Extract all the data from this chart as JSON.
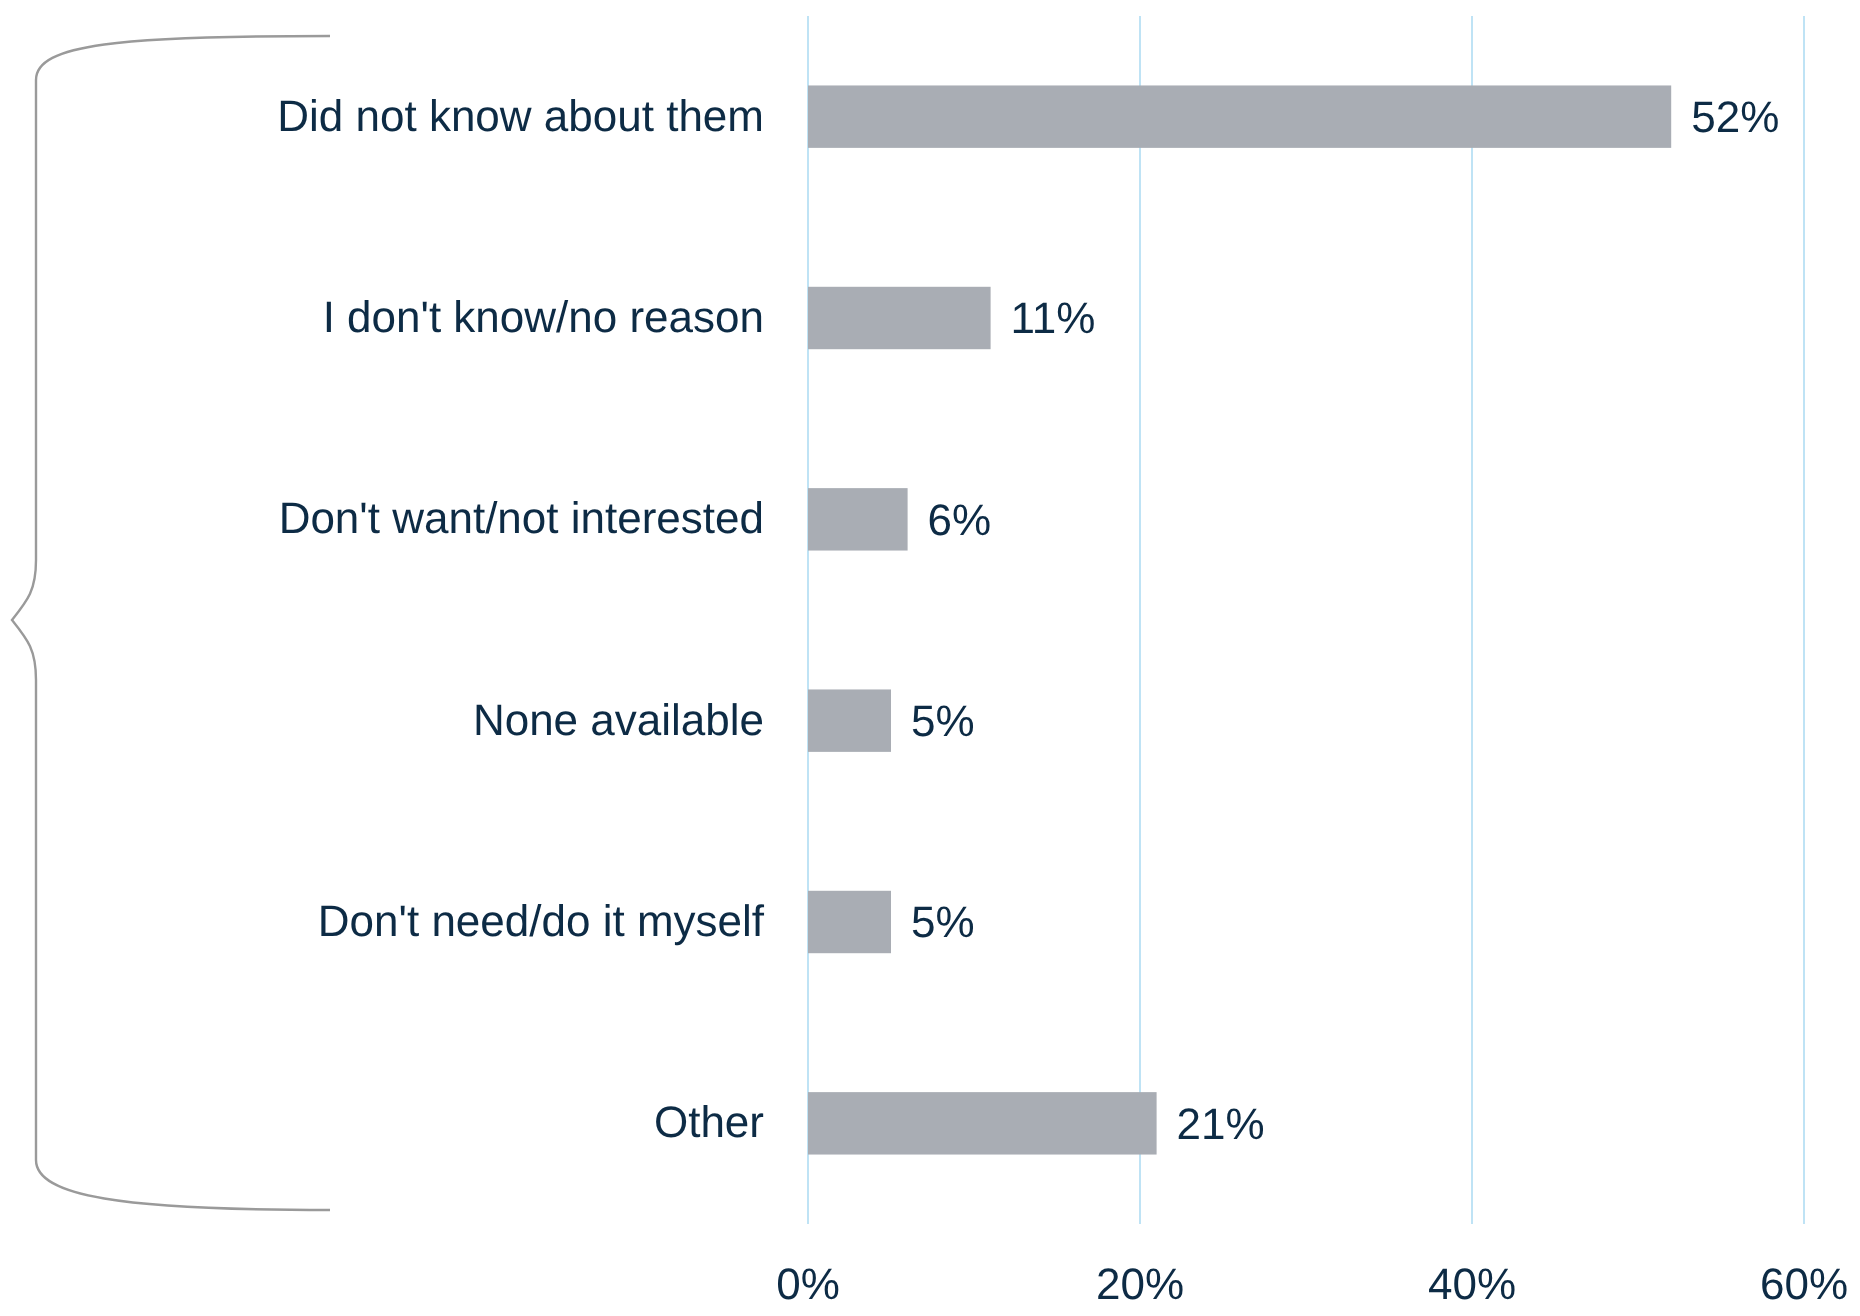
{
  "chart_data": {
    "type": "bar",
    "orientation": "horizontal",
    "categories": [
      "Did not know about them",
      "I don't know/no reason",
      "Don't want/not interested",
      "None available",
      "Don't need/do it myself",
      "Other"
    ],
    "values": [
      52,
      11,
      6,
      5,
      5,
      21
    ],
    "value_labels": [
      "52%",
      "11%",
      "6%",
      "5%",
      "5%",
      "21%"
    ],
    "color": "#a9adb4",
    "xlim": [
      0,
      60
    ],
    "xticks": [
      {
        "value": 0,
        "label": "0%"
      },
      {
        "value": 20,
        "label": "20%"
      },
      {
        "value": 40,
        "label": "40%"
      },
      {
        "value": 60,
        "label": "60%"
      }
    ],
    "grid": "x"
  }
}
